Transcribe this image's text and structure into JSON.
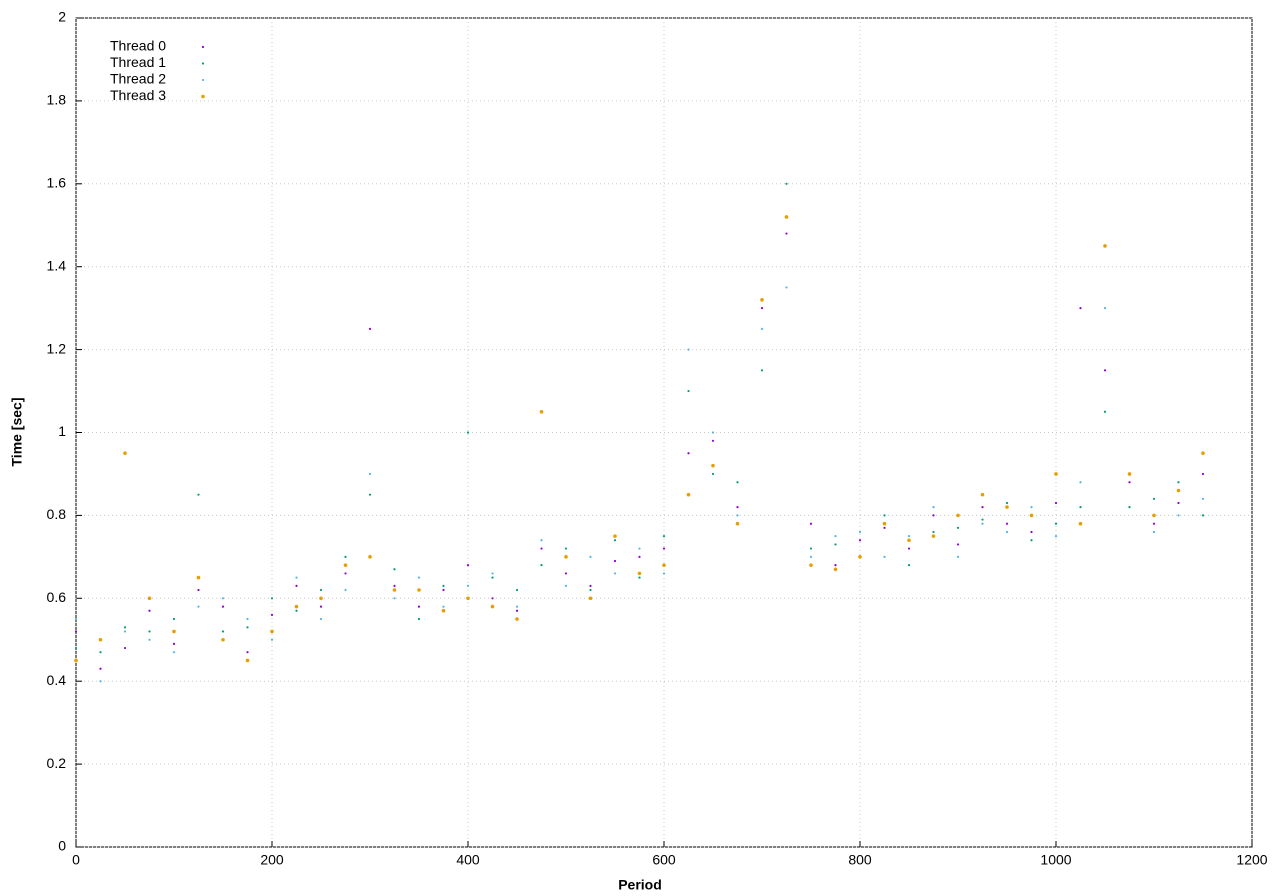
{
  "chart_data": {
    "type": "scatter",
    "xlabel": "Period",
    "ylabel": "Time [sec]",
    "x": [
      0,
      25,
      50,
      75,
      100,
      125,
      150,
      175,
      200,
      225,
      250,
      275,
      300,
      325,
      350,
      375,
      400,
      425,
      450,
      475,
      500,
      525,
      550,
      575,
      600,
      625,
      650,
      675,
      700,
      725,
      750,
      775,
      800,
      825,
      850,
      875,
      900,
      925,
      950,
      975,
      1000,
      1025,
      1050,
      1075,
      1100,
      1125,
      1150
    ],
    "series": [
      {
        "name": "Thread 0",
        "color": "#9400d3",
        "values": [
          0.52,
          0.43,
          0.48,
          0.57,
          0.49,
          0.62,
          0.58,
          0.47,
          0.56,
          0.63,
          0.58,
          0.66,
          1.25,
          0.63,
          0.58,
          0.62,
          0.68,
          0.6,
          0.57,
          0.72,
          0.66,
          0.63,
          0.69,
          0.7,
          0.72,
          0.95,
          0.98,
          0.82,
          1.3,
          1.48,
          0.78,
          0.68,
          0.74,
          0.77,
          0.72,
          0.8,
          0.73,
          0.82,
          0.78,
          0.76,
          0.83,
          1.3,
          1.15,
          0.88,
          0.78,
          0.83,
          0.9
        ]
      },
      {
        "name": "Thread 1",
        "color": "#009e73",
        "values": [
          0.48,
          0.47,
          0.53,
          0.52,
          0.55,
          0.85,
          0.52,
          0.53,
          0.6,
          0.57,
          0.62,
          0.7,
          0.85,
          0.67,
          0.55,
          0.63,
          1.0,
          0.65,
          0.62,
          0.68,
          0.72,
          0.62,
          0.74,
          0.65,
          0.75,
          1.1,
          0.9,
          0.88,
          1.15,
          1.6,
          0.72,
          0.73,
          0.7,
          0.8,
          0.68,
          0.76,
          0.77,
          0.79,
          0.83,
          0.74,
          0.78,
          0.82,
          1.05,
          0.82,
          0.84,
          0.88,
          0.8
        ]
      },
      {
        "name": "Thread 2",
        "color": "#56b4e9",
        "values": [
          0.55,
          0.4,
          0.52,
          0.5,
          0.47,
          0.58,
          0.6,
          0.55,
          0.5,
          0.65,
          0.55,
          0.62,
          0.9,
          0.6,
          0.65,
          0.58,
          0.63,
          0.66,
          0.58,
          0.74,
          0.63,
          0.7,
          0.66,
          0.72,
          0.66,
          1.2,
          1.0,
          0.8,
          1.25,
          1.35,
          0.7,
          0.75,
          0.76,
          0.7,
          0.75,
          0.82,
          0.7,
          0.78,
          0.76,
          0.82,
          0.75,
          0.88,
          1.3,
          0.9,
          0.76,
          0.8,
          0.84
        ]
      },
      {
        "name": "Thread 3",
        "color": "#e69f00",
        "values": [
          0.45,
          0.5,
          0.95,
          0.6,
          0.52,
          0.65,
          0.5,
          0.45,
          0.52,
          0.58,
          0.6,
          0.68,
          0.7,
          0.62,
          0.62,
          0.57,
          0.6,
          0.58,
          0.55,
          1.05,
          0.7,
          0.6,
          0.75,
          0.66,
          0.68,
          0.85,
          0.92,
          0.78,
          1.32,
          1.52,
          0.68,
          0.67,
          0.7,
          0.78,
          0.74,
          0.75,
          0.8,
          0.85,
          0.82,
          0.8,
          0.9,
          0.78,
          1.45,
          0.9,
          0.8,
          0.86,
          0.95
        ]
      }
    ],
    "xlim": [
      0,
      1200
    ],
    "xticks": [
      0,
      200,
      400,
      600,
      800,
      1000,
      1200
    ],
    "ylim": [
      0,
      2
    ],
    "yticks": [
      0,
      0.2,
      0.4,
      0.6,
      0.8,
      1,
      1.2,
      1.4,
      1.6,
      1.8,
      2
    ],
    "grid": true,
    "legend": "upper left"
  }
}
